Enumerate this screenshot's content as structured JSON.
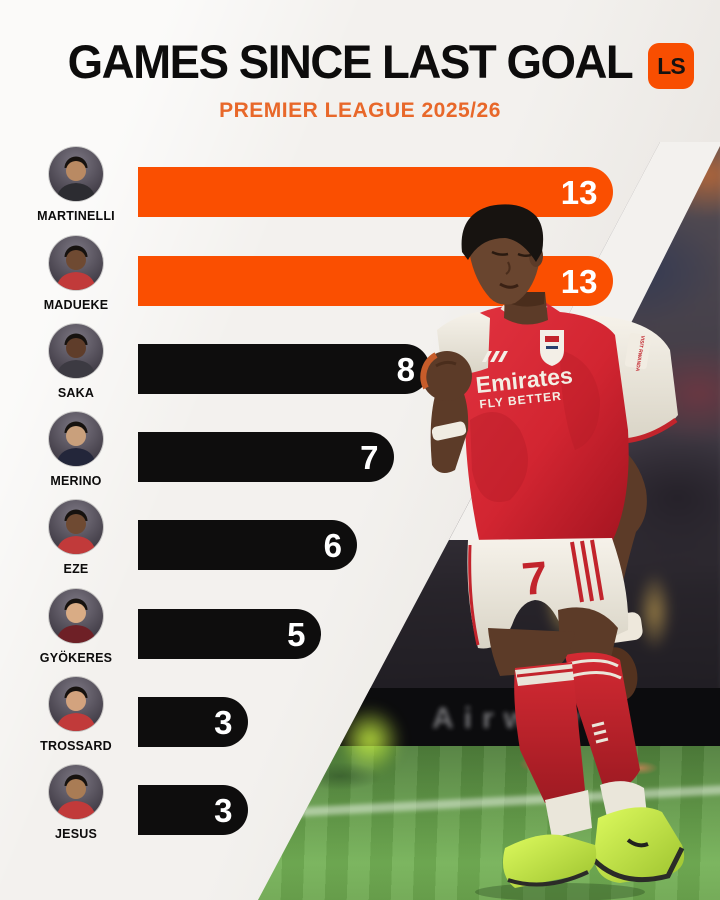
{
  "header": {
    "title": "GAMES SINCE LAST GOAL",
    "subtitle": "PREMIER LEAGUE 2025/26",
    "logo_text": "LS"
  },
  "chart_data": {
    "type": "bar",
    "orientation": "horizontal",
    "title": "GAMES SINCE LAST GOAL",
    "subtitle": "PREMIER LEAGUE 2025/26",
    "categories": [
      "MARTINELLI",
      "MADUEKE",
      "SAKA",
      "MERINO",
      "EZE",
      "GYÖKERES",
      "TROSSARD",
      "JESUS"
    ],
    "values": [
      13,
      13,
      8,
      7,
      6,
      5,
      3,
      3
    ],
    "bar_colors": [
      "#fa4f01",
      "#fa4f01",
      "#0e0d0d",
      "#0e0d0d",
      "#0e0d0d",
      "#0e0d0d",
      "#0e0d0d",
      "#0e0d0d"
    ],
    "value_label_color": "#ffffff",
    "value_labels_inside_end": true,
    "xlim": [
      0,
      13.5
    ],
    "grid": false,
    "legend": false
  },
  "avatars": [
    {
      "skin": "#b98a63",
      "shirt": "#2c2c31"
    },
    {
      "skin": "#6f4a32",
      "shirt": "#c13a3a"
    },
    {
      "skin": "#5f3d2a",
      "shirt": "#3c3a42"
    },
    {
      "skin": "#c9a07c",
      "shirt": "#23263a"
    },
    {
      "skin": "#6f4a32",
      "shirt": "#c13a3a"
    },
    {
      "skin": "#d9ac85",
      "shirt": "#6e2026"
    },
    {
      "skin": "#d3a37e",
      "shirt": "#c13a3a"
    },
    {
      "skin": "#a97c55",
      "shirt": "#c13a3a"
    }
  ],
  "photo": {
    "jersey_sponsor": "Emirates",
    "jersey_slogan": "FLY BETTER",
    "shorts_number": "7",
    "sleeve_text": "VISIT RWANDA",
    "board_text": "Airway"
  },
  "colors": {
    "accent_orange": "#fa4f01",
    "bar_black": "#0e0d0d",
    "subtitle_orange": "#e8682a",
    "background": "#f3f1ee",
    "grass_green": "#66a04c",
    "boot_volt": "#c6ef3f",
    "jersey_red": "#d32a33"
  }
}
